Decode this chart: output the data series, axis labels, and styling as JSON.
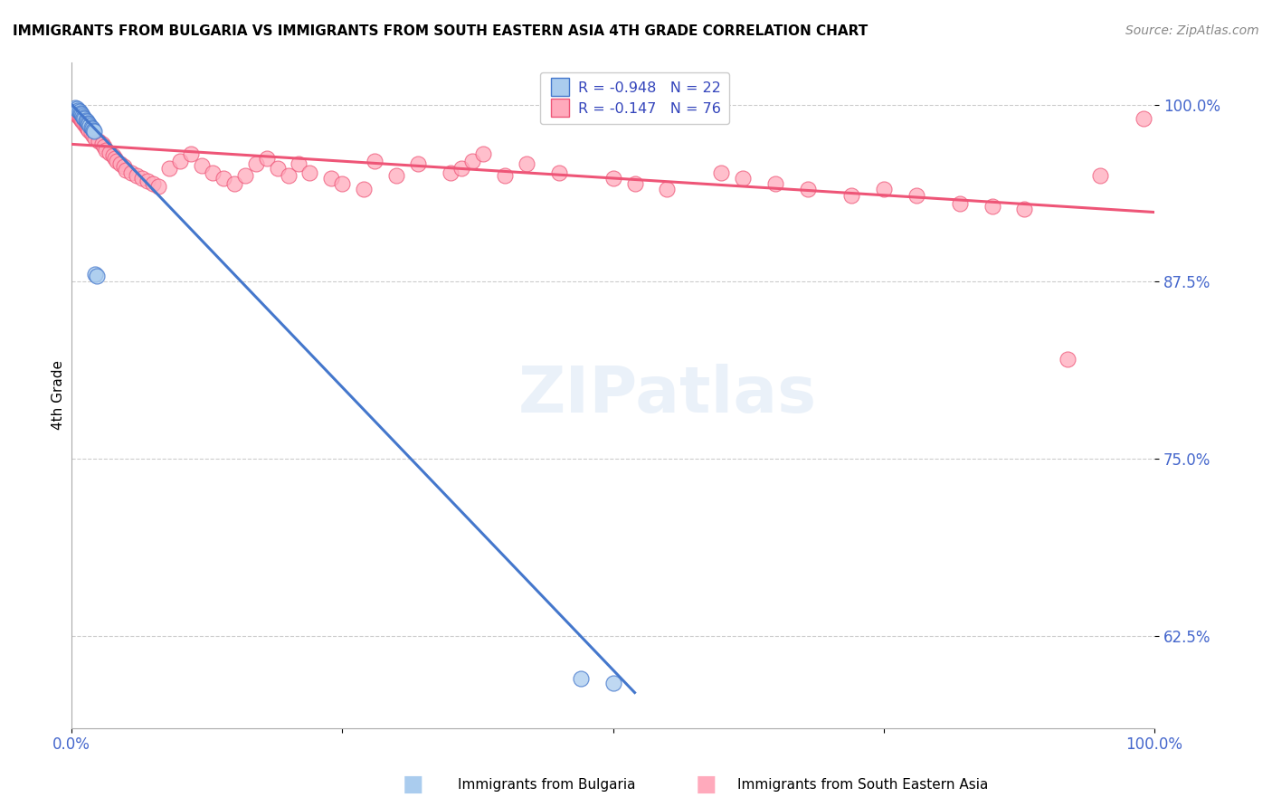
{
  "title": "IMMIGRANTS FROM BULGARIA VS IMMIGRANTS FROM SOUTH EASTERN ASIA 4TH GRADE CORRELATION CHART",
  "source": "Source: ZipAtlas.com",
  "ylabel": "4th Grade",
  "yticks": [
    1.0,
    0.875,
    0.75,
    0.625
  ],
  "ytick_labels": [
    "100.0%",
    "87.5%",
    "75.0%",
    "62.5%"
  ],
  "xlim": [
    0.0,
    1.0
  ],
  "ylim": [
    0.56,
    1.03
  ],
  "watermark": "ZIPatlas",
  "legend_r_blue": "-0.948",
  "legend_n_blue": "22",
  "legend_r_pink": "-0.147",
  "legend_n_pink": "76",
  "blue_color": "#aaccee",
  "pink_color": "#ffaabc",
  "blue_line_color": "#4477cc",
  "pink_line_color": "#ee5577",
  "background_color": "#ffffff",
  "grid_color": "#cccccc",
  "blue_scatter_x": [
    0.003,
    0.005,
    0.006,
    0.007,
    0.008,
    0.009,
    0.01,
    0.011,
    0.012,
    0.013,
    0.014,
    0.015,
    0.016,
    0.017,
    0.018,
    0.019,
    0.02,
    0.021,
    0.022,
    0.023,
    0.47,
    0.5
  ],
  "blue_scatter_y": [
    0.998,
    0.997,
    0.996,
    0.995,
    0.994,
    0.993,
    0.992,
    0.991,
    0.99,
    0.989,
    0.988,
    0.987,
    0.986,
    0.985,
    0.984,
    0.983,
    0.982,
    0.981,
    0.88,
    0.879,
    0.595,
    0.592
  ],
  "pink_scatter_x": [
    0.003,
    0.004,
    0.005,
    0.006,
    0.007,
    0.008,
    0.009,
    0.01,
    0.012,
    0.013,
    0.014,
    0.015,
    0.016,
    0.018,
    0.02,
    0.022,
    0.025,
    0.028,
    0.03,
    0.032,
    0.035,
    0.038,
    0.04,
    0.042,
    0.045,
    0.048,
    0.05,
    0.055,
    0.06,
    0.065,
    0.07,
    0.075,
    0.08,
    0.09,
    0.1,
    0.11,
    0.12,
    0.13,
    0.14,
    0.15,
    0.16,
    0.17,
    0.18,
    0.19,
    0.2,
    0.21,
    0.22,
    0.24,
    0.25,
    0.27,
    0.28,
    0.3,
    0.32,
    0.35,
    0.36,
    0.37,
    0.38,
    0.4,
    0.42,
    0.45,
    0.5,
    0.52,
    0.55,
    0.6,
    0.62,
    0.65,
    0.68,
    0.72,
    0.75,
    0.78,
    0.82,
    0.85,
    0.88,
    0.92,
    0.95,
    0.99
  ],
  "pink_scatter_y": [
    0.995,
    0.994,
    0.993,
    0.992,
    0.991,
    0.99,
    0.989,
    0.988,
    0.986,
    0.985,
    0.984,
    0.983,
    0.982,
    0.98,
    0.978,
    0.976,
    0.974,
    0.972,
    0.97,
    0.968,
    0.966,
    0.964,
    0.962,
    0.96,
    0.958,
    0.956,
    0.954,
    0.952,
    0.95,
    0.948,
    0.946,
    0.944,
    0.942,
    0.955,
    0.96,
    0.965,
    0.957,
    0.952,
    0.948,
    0.944,
    0.95,
    0.958,
    0.962,
    0.955,
    0.95,
    0.958,
    0.952,
    0.948,
    0.944,
    0.94,
    0.96,
    0.95,
    0.958,
    0.952,
    0.955,
    0.96,
    0.965,
    0.95,
    0.958,
    0.952,
    0.948,
    0.944,
    0.94,
    0.952,
    0.948,
    0.944,
    0.94,
    0.936,
    0.94,
    0.936,
    0.93,
    0.928,
    0.926,
    0.82,
    0.95,
    0.99
  ],
  "blue_trend_x": [
    0.0,
    0.52
  ],
  "blue_trend_y": [
    1.0,
    0.585
  ],
  "pink_trend_x": [
    0.0,
    1.0
  ],
  "pink_trend_y": [
    0.972,
    0.924
  ]
}
